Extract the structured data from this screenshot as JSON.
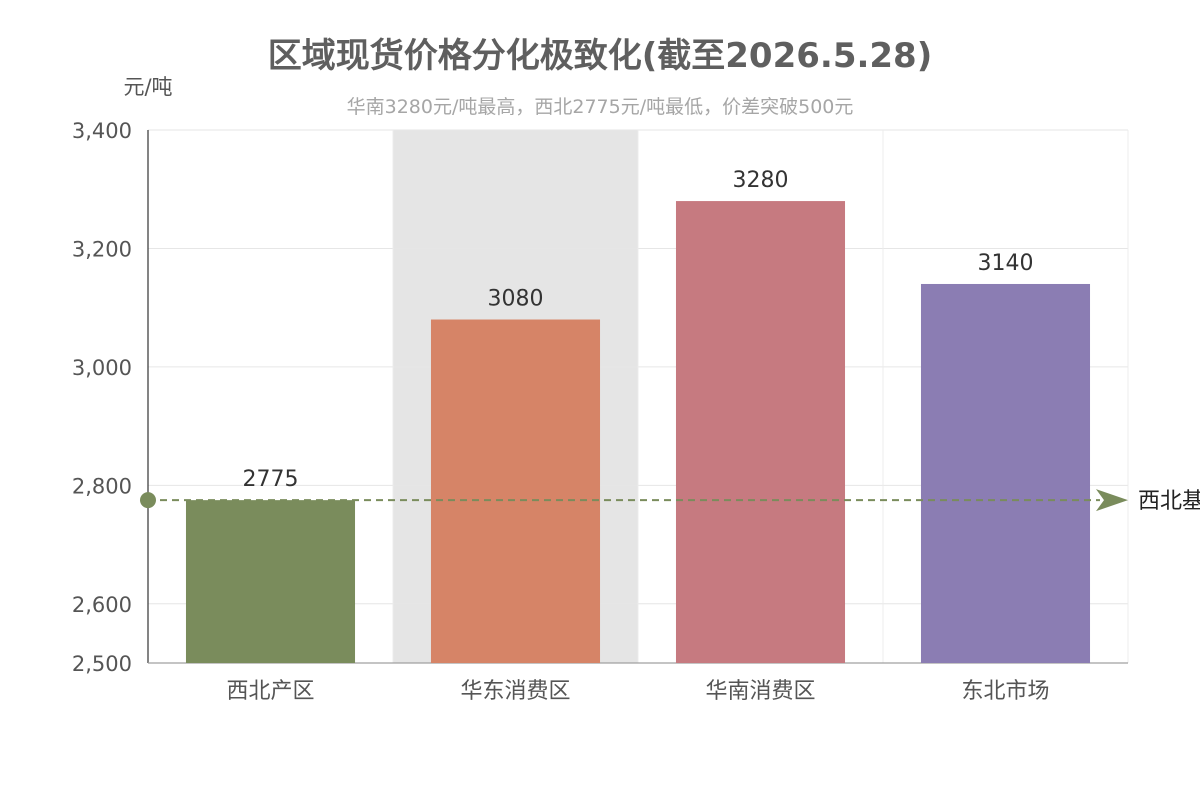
{
  "chart_data": {
    "type": "bar",
    "title": "区域现货价格分化极致化(截至2026.5.28)",
    "subtitle": "华南3280元/吨最高，西北2775元/吨最低，价差突破500元",
    "ylabel": "元/吨",
    "xlabel": "",
    "categories": [
      "西北产区",
      "华东消费区",
      "华南消费区",
      "东北市场"
    ],
    "values": [
      2775,
      3080,
      3280,
      3140
    ],
    "value_labels": [
      "2775",
      "3080",
      "3280",
      "3140"
    ],
    "colors": [
      "#7a8c5c",
      "#d68467",
      "#c67a80",
      "#8b7db3"
    ],
    "ylim": [
      2500,
      3400
    ],
    "y_ticks": [
      2500,
      2600,
      2800,
      3000,
      3200,
      3400
    ],
    "y_tick_labels": [
      "2,500",
      "2,600",
      "2,800",
      "3,000",
      "3,200",
      "3,400"
    ],
    "highlight_category": "华东消费区",
    "grid": true,
    "reference_line": {
      "value": 2775,
      "label": "西北基",
      "color": "#7a8c5c",
      "style": "dashed"
    }
  }
}
